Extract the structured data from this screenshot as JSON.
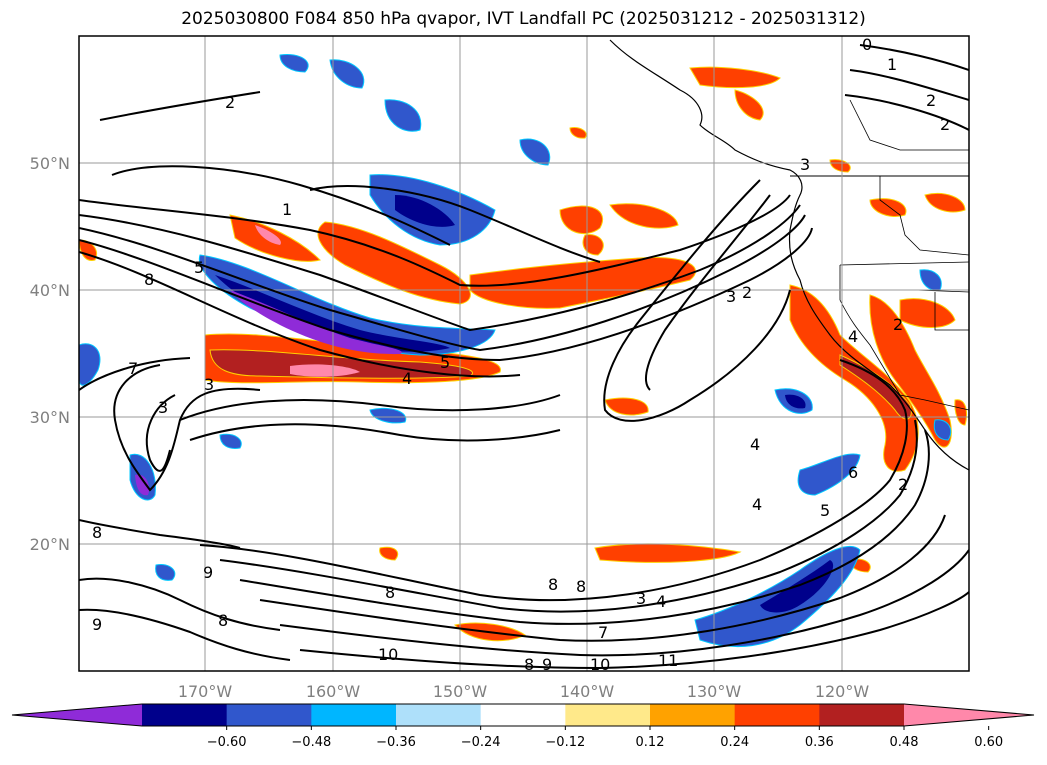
{
  "title": "2025030800 F084 850 hPa qvapor, IVT Landfall PC (2025031212 - 2025031312)",
  "lat_labels": [
    "50°N",
    "40°N",
    "30°N",
    "20°N"
  ],
  "lon_labels": [
    "170°W",
    "160°W",
    "150°W",
    "140°W",
    "130°W",
    "120°W"
  ],
  "colorbar": {
    "colors": [
      "#8f2bd8",
      "#00008b",
      "#3057cc",
      "#00b6ff",
      "#aee0fa",
      "#ffffff",
      "#ffe98a",
      "#ffa200",
      "#ff4000",
      "#b22020",
      "#ff88aa"
    ],
    "ticks": [
      "−0.60",
      "−0.48",
      "−0.36",
      "−0.24",
      "−0.12",
      "0.12",
      "0.24",
      "0.36",
      "0.48",
      "0.60"
    ]
  },
  "contour_labels": [
    "0",
    "1",
    "2",
    "2",
    "2",
    "3",
    "1",
    "2",
    "3",
    "2",
    "4",
    "5",
    "4",
    "3",
    "3",
    "4",
    "5",
    "6",
    "4",
    "5",
    "2",
    "7",
    "8",
    "8",
    "8",
    "8",
    "9",
    "10",
    "10",
    "11",
    "8",
    "9",
    "8",
    "3",
    "4",
    "7",
    "9",
    "8"
  ]
}
